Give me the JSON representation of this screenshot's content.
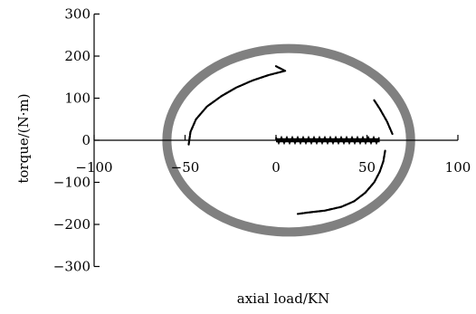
{
  "chart_data": {
    "type": "scatter",
    "xlabel": "axial load/KN",
    "ylabel": "torque/(N·m)",
    "xlim": [
      -100,
      100
    ],
    "ylim": [
      -300,
      300
    ],
    "x_ticks": [
      -100,
      -50,
      0,
      50,
      100
    ],
    "x_tick_labels": [
      "−100",
      "−50",
      "0",
      "50",
      "100"
    ],
    "y_ticks": [
      300,
      200,
      100,
      0,
      -100,
      -200,
      -300
    ],
    "y_tick_labels": [
      "300",
      "200",
      "100",
      "0",
      "−100",
      "−200",
      "−300"
    ],
    "grid": false,
    "legend": "none",
    "series": [
      {
        "kind": "ellipse-band",
        "color": "#808080",
        "center": [
          7,
          0
        ],
        "x_semi_axis": 67,
        "y_semi_axis": 218,
        "band_width": 4
      },
      {
        "kind": "arc",
        "color": "#000000",
        "points": [
          [
            -48,
            -10
          ],
          [
            -47,
            20
          ],
          [
            -44,
            50
          ],
          [
            -38,
            80
          ],
          [
            -30,
            105
          ],
          [
            -22,
            125
          ],
          [
            -13,
            142
          ],
          [
            -4,
            155
          ],
          [
            5,
            165
          ],
          [
            0,
            176
          ]
        ]
      },
      {
        "kind": "arc",
        "color": "#000000",
        "points": [
          [
            54,
            95
          ],
          [
            57,
            75
          ],
          [
            61,
            45
          ],
          [
            64,
            15
          ]
        ]
      },
      {
        "kind": "band",
        "color": "#000000",
        "x_range": [
          0,
          57
        ],
        "y_center": 0,
        "y_half_thickness": 7
      },
      {
        "kind": "arc",
        "color": "#000000",
        "points": [
          [
            60,
            -25
          ],
          [
            59,
            -50
          ],
          [
            57,
            -75
          ],
          [
            54,
            -100
          ],
          [
            49,
            -125
          ],
          [
            43,
            -145
          ],
          [
            36,
            -158
          ],
          [
            27,
            -167
          ],
          [
            17,
            -172
          ],
          [
            12,
            -175
          ]
        ]
      }
    ]
  },
  "colors": {
    "ellipse_band": "#808080",
    "data_marks": "#000000",
    "axes": "#000000",
    "background": "#ffffff"
  }
}
